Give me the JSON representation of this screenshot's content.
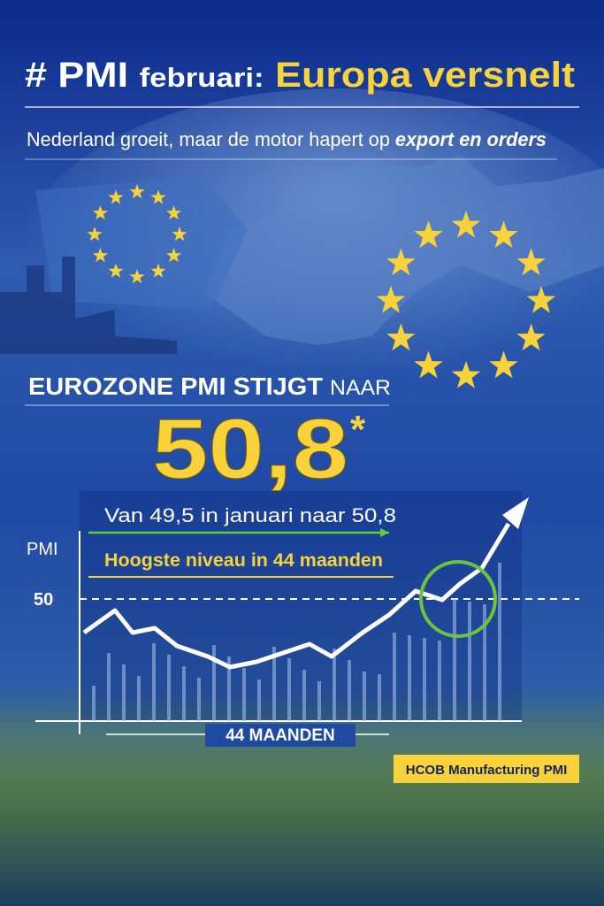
{
  "header": {
    "title_prefix": "# PMI",
    "title_middle": "februari:",
    "title_highlight": "Europa versnelt",
    "subtitle": "Nederland groeit, maar de motor hapert op",
    "subtitle_emphasis": "export en orders"
  },
  "headline": {
    "text": "EUROZONE PMI STIJGT",
    "suffix": "NAAR",
    "value": "50,8",
    "footnote_mark": "*"
  },
  "chart": {
    "from_to": "Van 49,5 in januari naar 50,8",
    "highlight": "Hoogste niveau in 44 maanden",
    "y_axis_label": "PMI",
    "y_tick": "50",
    "x_axis_label": "44 MAANDEN"
  },
  "source": "HCOB Manufacturing PMI"
}
